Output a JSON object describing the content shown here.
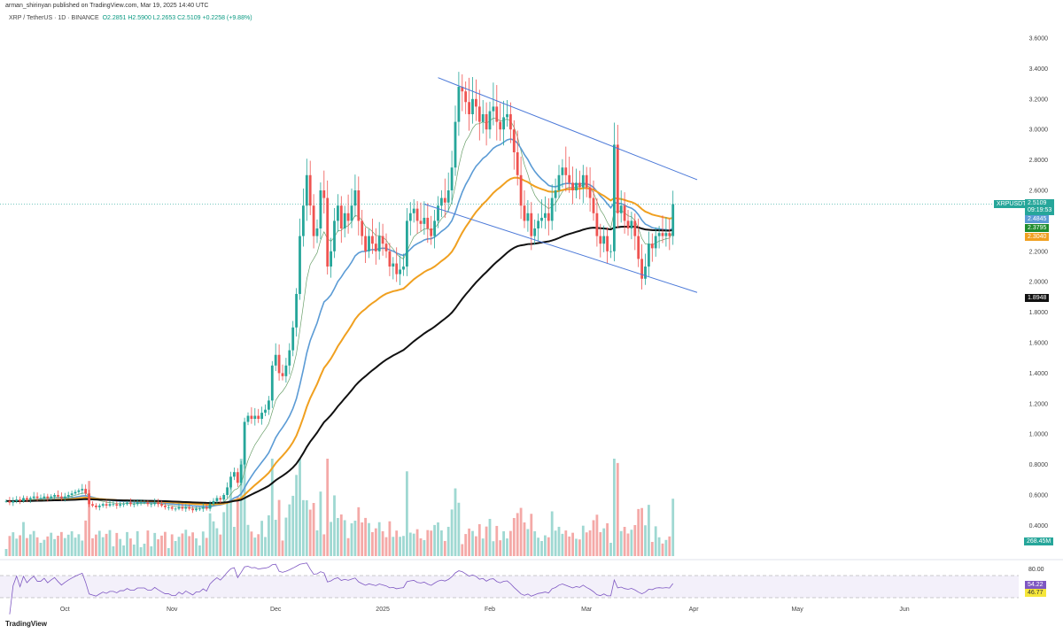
{
  "header": {
    "publisher": "arman_shirinyan published on TradingView.com, Mar 19, 2025 14:40 UTC",
    "symbol": "XRP / TetherUS · 1D · BINANCE",
    "open": "O2.2851",
    "high": "H2.5900",
    "low": "L2.2653",
    "close": "C2.5109",
    "change": "+0.2258 (+9.88%)"
  },
  "badges": {
    "symbol": "XRPUSDT",
    "price": "2.5109",
    "countdown": "09:19:53",
    "ma_blue": "2.4845",
    "ma_green": "2.3795",
    "ma_orange": "2.3040",
    "ma_black": "1.8948",
    "volume": "268.45M",
    "rsi": "54.22",
    "rsi_ma": "46.77",
    "rsi_level": "80.00"
  },
  "colors": {
    "up": "#26a69a",
    "down": "#ef5350",
    "ma_blue": "#5b9bd5",
    "ma_green": "#6a9f6a",
    "ma_orange": "#f0a020",
    "ma_black": "#111111",
    "trend": "#4a78d8",
    "rsi": "#7e57c2"
  },
  "logo": "TradingView",
  "chart_data": {
    "type": "candlestick",
    "title": "XRP / TetherUS · 1D · BINANCE",
    "y_ticks": [
      "3.6000",
      "3.4000",
      "3.2000",
      "3.0000",
      "2.8000",
      "2.6000",
      "2.2000",
      "2.0000",
      "1.8000",
      "1.6000",
      "1.4000",
      "1.2000",
      "1.0000",
      "0.8000",
      "0.6000",
      "0.4000"
    ],
    "ylim": [
      0.4,
      3.6
    ],
    "x_ticks": [
      {
        "label": "Oct",
        "day": 24
      },
      {
        "label": "Nov",
        "day": 55
      },
      {
        "label": "Dec",
        "day": 85
      },
      {
        "label": "2025",
        "day": 116
      },
      {
        "label": "Feb",
        "day": 147
      },
      {
        "label": "Mar",
        "day": 175
      },
      {
        "label": "Apr",
        "day": 206
      },
      {
        "label": "May",
        "day": 236
      },
      {
        "label": "Jun",
        "day": 267
      }
    ],
    "segments": [
      {
        "month": "2024-09",
        "start_day": 7,
        "closes": [
          0.56,
          0.55,
          0.56,
          0.57,
          0.56,
          0.58,
          0.57,
          0.58,
          0.59,
          0.58,
          0.58,
          0.59,
          0.58,
          0.59,
          0.6,
          0.59,
          0.58,
          0.59,
          0.6,
          0.61,
          0.62,
          0.63,
          0.64,
          0.61
        ]
      },
      {
        "month": "2024-10",
        "start_day": 1,
        "closes": [
          0.54,
          0.53,
          0.52,
          0.53,
          0.54,
          0.53,
          0.54,
          0.54,
          0.53,
          0.54,
          0.54,
          0.55,
          0.54,
          0.54,
          0.55,
          0.55,
          0.55,
          0.54,
          0.54,
          0.55,
          0.54,
          0.53,
          0.52,
          0.52,
          0.51,
          0.51,
          0.52,
          0.51,
          0.52,
          0.51,
          0.5
        ]
      },
      {
        "month": "2024-11",
        "start_day": 1,
        "closes": [
          0.51,
          0.51,
          0.52,
          0.51,
          0.54,
          0.56,
          0.58,
          0.57,
          0.6,
          0.65,
          0.72,
          0.75,
          0.68,
          0.8,
          1.08,
          1.12,
          1.1,
          1.12,
          1.1,
          1.14,
          1.16,
          1.22,
          1.45,
          1.52,
          1.4,
          1.38,
          1.45,
          1.55,
          1.7,
          1.92
        ]
      },
      {
        "month": "2024-12",
        "start_day": 1,
        "closes": [
          2.3,
          2.5,
          2.7,
          2.5,
          2.3,
          2.35,
          2.6,
          2.55,
          2.1,
          2.2,
          2.4,
          2.5,
          2.35,
          2.45,
          2.4,
          2.5,
          2.6,
          2.4,
          2.3,
          2.2,
          2.3,
          2.25,
          2.2,
          2.3,
          2.25,
          2.2,
          2.1,
          2.12,
          2.05,
          2.08,
          2.1
        ]
      },
      {
        "month": "2025-01",
        "start_day": 1,
        "closes": [
          2.4,
          2.45,
          2.48,
          2.4,
          2.38,
          2.42,
          2.35,
          2.3,
          2.4,
          2.5,
          2.55,
          2.52,
          2.6,
          2.75,
          3.05,
          3.28,
          3.25,
          3.18,
          3.1,
          3.2,
          3.15,
          3.05,
          3.1,
          3.0,
          3.12,
          3.15,
          3.05,
          3.0,
          3.08,
          3.1,
          3.0
        ]
      },
      {
        "month": "2025-02",
        "start_day": 1,
        "closes": [
          2.85,
          2.7,
          2.5,
          2.4,
          2.45,
          2.3,
          2.35,
          2.4,
          2.42,
          2.45,
          2.4,
          2.55,
          2.6,
          2.7,
          2.75,
          2.7,
          2.65,
          2.6,
          2.65,
          2.62,
          2.7,
          2.62,
          2.55,
          2.45,
          2.3,
          2.25,
          2.3,
          2.2
        ]
      },
      {
        "month": "2025-03",
        "start_day": 1,
        "closes": [
          2.2,
          2.9,
          2.45,
          2.5,
          2.4,
          2.35,
          2.4,
          2.3,
          2.15,
          2.02,
          2.1,
          2.25,
          2.22,
          2.3,
          2.32,
          2.3,
          2.32,
          2.3,
          2.51
        ]
      }
    ],
    "trendlines": [
      {
        "from": {
          "day": 132,
          "price": 3.34
        },
        "to": {
          "day": 207,
          "price": 2.67
        }
      },
      {
        "from": {
          "day": 128,
          "price": 2.51
        },
        "to": {
          "day": 207,
          "price": 1.93
        }
      }
    ],
    "moving_averages": [
      {
        "color": "ma_green",
        "period": 20
      },
      {
        "color": "ma_blue",
        "period": 50
      },
      {
        "color": "ma_orange",
        "period": 100
      },
      {
        "color": "ma_black",
        "period": 200
      }
    ]
  }
}
